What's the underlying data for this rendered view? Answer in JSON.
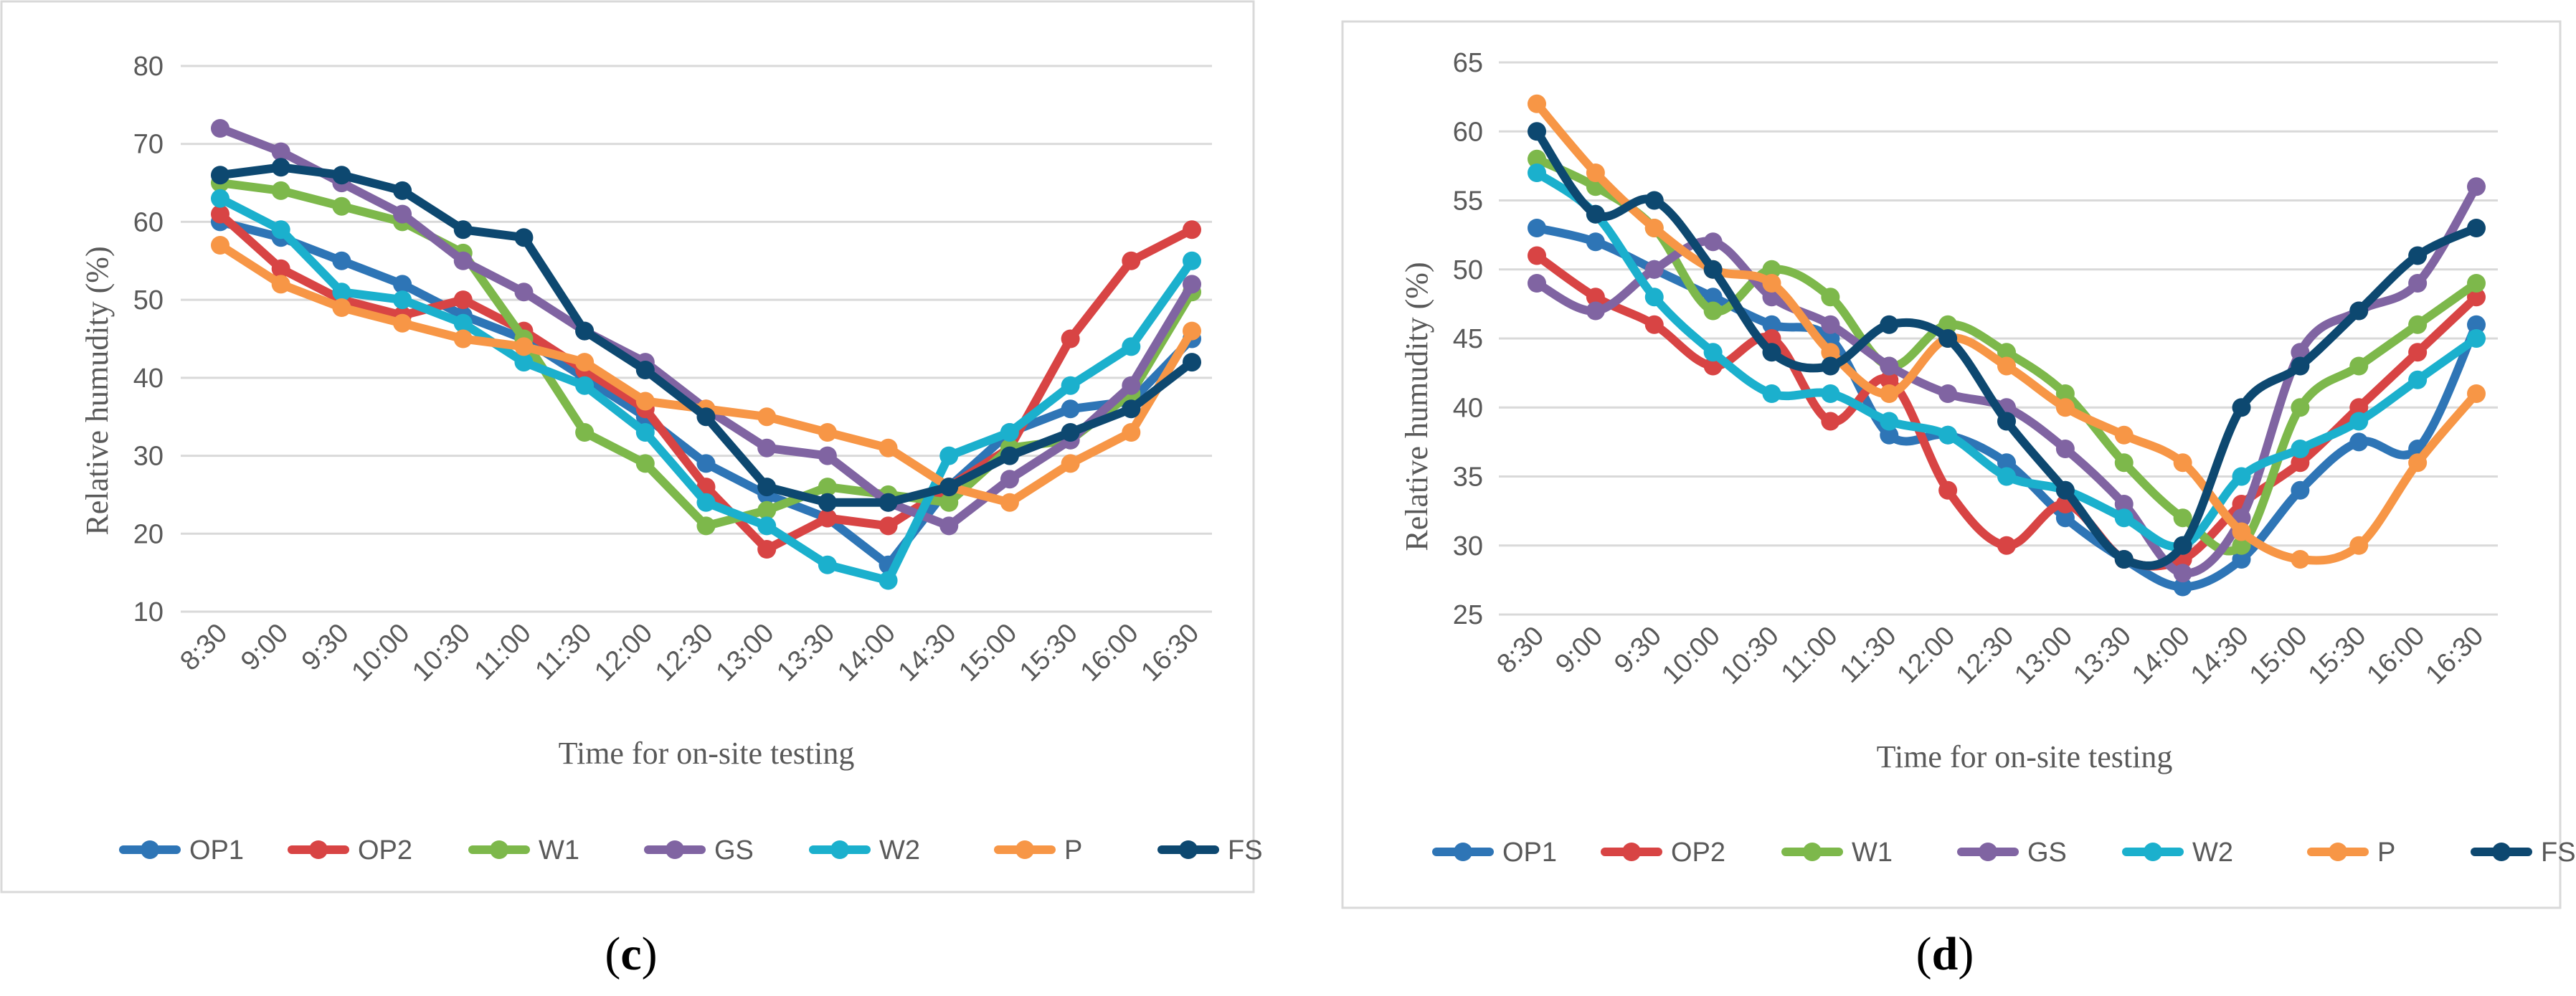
{
  "colors": {
    "OP1": "#2E75B6",
    "OP2": "#D84444",
    "W1": "#7DB84B",
    "GS": "#8064A2",
    "W2": "#1BB0CD",
    "P": "#F79646",
    "FS": "#0D4870",
    "grid": "#D9D9D9",
    "frame": "#D9D9D9"
  },
  "chart_data": [
    {
      "type": "line",
      "panel_label": "c",
      "xlabel": "Time for on-site testing",
      "ylabel": "Relative humudity (%)",
      "ylim": [
        10,
        80
      ],
      "yticks": [
        10,
        20,
        30,
        40,
        50,
        60,
        70,
        80
      ],
      "grid": true,
      "smooth": false,
      "legend_position": "bottom",
      "categories": [
        "8:30",
        "9:00",
        "9:30",
        "10:00",
        "10:30",
        "11:00",
        "11:30",
        "12:00",
        "12:30",
        "13:00",
        "13:30",
        "14:00",
        "14:30",
        "15:00",
        "15:30",
        "16:00",
        "16:30"
      ],
      "series": [
        {
          "name": "OP1",
          "values": [
            60,
            58,
            55,
            52,
            48,
            45,
            40,
            35,
            29,
            25,
            22,
            16,
            26,
            33,
            36,
            37,
            45
          ]
        },
        {
          "name": "OP2",
          "values": [
            61,
            54,
            50,
            48,
            50,
            46,
            41,
            36,
            26,
            18,
            22,
            21,
            26,
            31,
            45,
            55,
            59
          ]
        },
        {
          "name": "W1",
          "values": [
            65,
            64,
            62,
            60,
            56,
            45,
            33,
            29,
            21,
            23,
            26,
            25,
            24,
            31,
            32,
            38,
            51
          ]
        },
        {
          "name": "GS",
          "values": [
            72,
            69,
            65,
            61,
            55,
            51,
            46,
            42,
            36,
            31,
            30,
            24,
            21,
            27,
            32,
            39,
            52
          ]
        },
        {
          "name": "W2",
          "values": [
            63,
            59,
            51,
            50,
            47,
            42,
            39,
            33,
            24,
            21,
            16,
            14,
            30,
            33,
            39,
            44,
            55
          ]
        },
        {
          "name": "P",
          "values": [
            57,
            52,
            49,
            47,
            45,
            44,
            42,
            37,
            36,
            35,
            33,
            31,
            26,
            24,
            29,
            33,
            46
          ]
        },
        {
          "name": "FS",
          "values": [
            66,
            67,
            66,
            64,
            59,
            58,
            46,
            41,
            35,
            26,
            24,
            24,
            26,
            30,
            33,
            36,
            42
          ]
        }
      ]
    },
    {
      "type": "line",
      "panel_label": "d",
      "xlabel": "Time for on-site testing",
      "ylabel": "Relative humudity (%)",
      "ylim": [
        25,
        65
      ],
      "yticks": [
        25,
        30,
        35,
        40,
        45,
        50,
        55,
        60,
        65
      ],
      "grid": true,
      "smooth": true,
      "legend_position": "bottom",
      "categories": [
        "8:30",
        "9:00",
        "9:30",
        "10:00",
        "10:30",
        "11:00",
        "11:30",
        "12:00",
        "12:30",
        "13:00",
        "13:30",
        "14:00",
        "14:30",
        "15:00",
        "15:30",
        "16:00",
        "16:30"
      ],
      "series": [
        {
          "name": "OP1",
          "values": [
            53,
            52,
            50,
            48,
            46,
            45,
            38,
            38,
            36,
            32,
            29,
            27,
            29,
            34,
            37.5,
            37,
            46
          ]
        },
        {
          "name": "OP2",
          "values": [
            51,
            48,
            46,
            43,
            45,
            39,
            42,
            34,
            30,
            33,
            29,
            29,
            33,
            36,
            40,
            44,
            48
          ]
        },
        {
          "name": "W1",
          "values": [
            58,
            56,
            53,
            47,
            50,
            48,
            43,
            46,
            44,
            41,
            36,
            32,
            30,
            40,
            43,
            46,
            49
          ]
        },
        {
          "name": "GS",
          "values": [
            49,
            47,
            50,
            52,
            48,
            46,
            43,
            41,
            40,
            37,
            33,
            28,
            32,
            44,
            47,
            49,
            56
          ]
        },
        {
          "name": "W2",
          "values": [
            57,
            54,
            48,
            44,
            41,
            41,
            39,
            38,
            35,
            34,
            32,
            30,
            35,
            37,
            39,
            42,
            45
          ]
        },
        {
          "name": "P",
          "values": [
            62,
            57,
            53,
            50,
            49,
            44,
            41,
            45,
            43,
            40,
            38,
            36,
            31,
            29,
            30,
            36,
            41
          ]
        },
        {
          "name": "FS",
          "values": [
            60,
            54,
            55,
            50,
            44,
            43,
            46,
            45,
            39,
            34,
            29,
            30,
            40,
            43,
            47,
            51,
            53
          ]
        }
      ]
    }
  ]
}
